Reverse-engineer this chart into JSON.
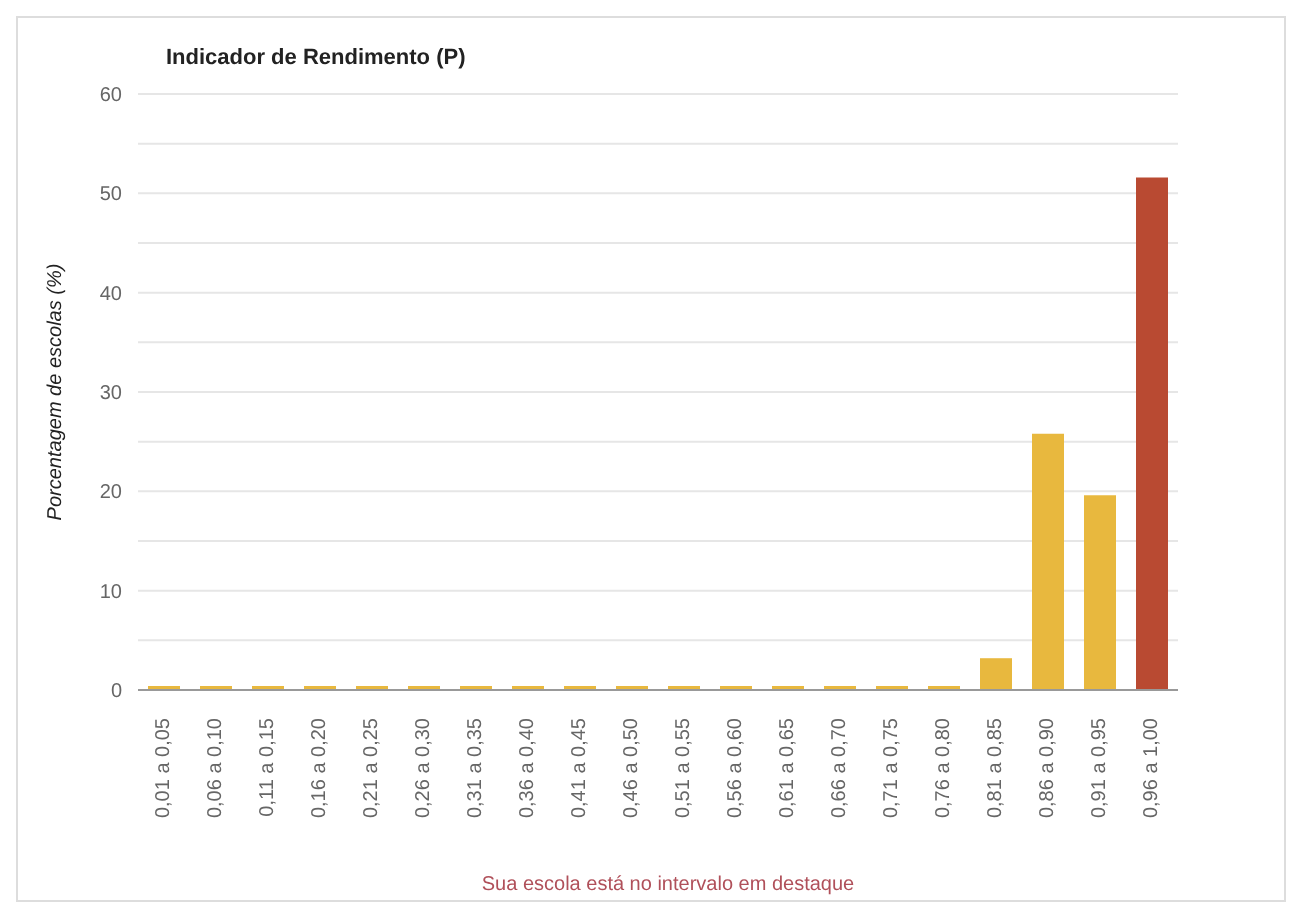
{
  "chart_data": {
    "type": "bar",
    "title": "Indicador de Rendimento (P)",
    "ylabel": "Porcentagem de escolas (%)",
    "categories": [
      "0,01 a 0,05",
      "0,06 a 0,10",
      "0,11 a 0,15",
      "0,16 a 0,20",
      "0,21 a 0,25",
      "0,26 a 0,30",
      "0,31 a 0,35",
      "0,36 a 0,40",
      "0,41 a 0,45",
      "0,46 a 0,50",
      "0,51 a 0,55",
      "0,56 a 0,60",
      "0,61 a 0,65",
      "0,66 a 0,70",
      "0,71 a 0,75",
      "0,76 a 0,80",
      "0,81 a 0,85",
      "0,86 a 0,90",
      "0,91 a 0,95",
      "0,96 a 1,00"
    ],
    "values": [
      0,
      0,
      0,
      0,
      0,
      0,
      0,
      0,
      0,
      0,
      0,
      0,
      0,
      0,
      0,
      0,
      3.2,
      25.8,
      19.6,
      51.6
    ],
    "colors": [
      "#e8b83e",
      "#e8b83e",
      "#e8b83e",
      "#e8b83e",
      "#e8b83e",
      "#e8b83e",
      "#e8b83e",
      "#e8b83e",
      "#e8b83e",
      "#e8b83e",
      "#e8b83e",
      "#e8b83e",
      "#e8b83e",
      "#e8b83e",
      "#e8b83e",
      "#e8b83e",
      "#e8b83e",
      "#e8b83e",
      "#e8b83e",
      "#b94a32"
    ],
    "ylim": [
      0,
      60
    ],
    "yticks": [
      0,
      {
        "value": 5,
        "label": null
      },
      10,
      {
        "value": 15,
        "label": null
      },
      20,
      {
        "value": 25,
        "label": null
      },
      30,
      {
        "value": 35,
        "label": null
      },
      40,
      {
        "value": 45,
        "label": null
      },
      50,
      {
        "value": 55,
        "label": null
      },
      60
    ],
    "grid": "y",
    "annotations": [
      "Sua escola está no intervalo em destaque"
    ]
  }
}
